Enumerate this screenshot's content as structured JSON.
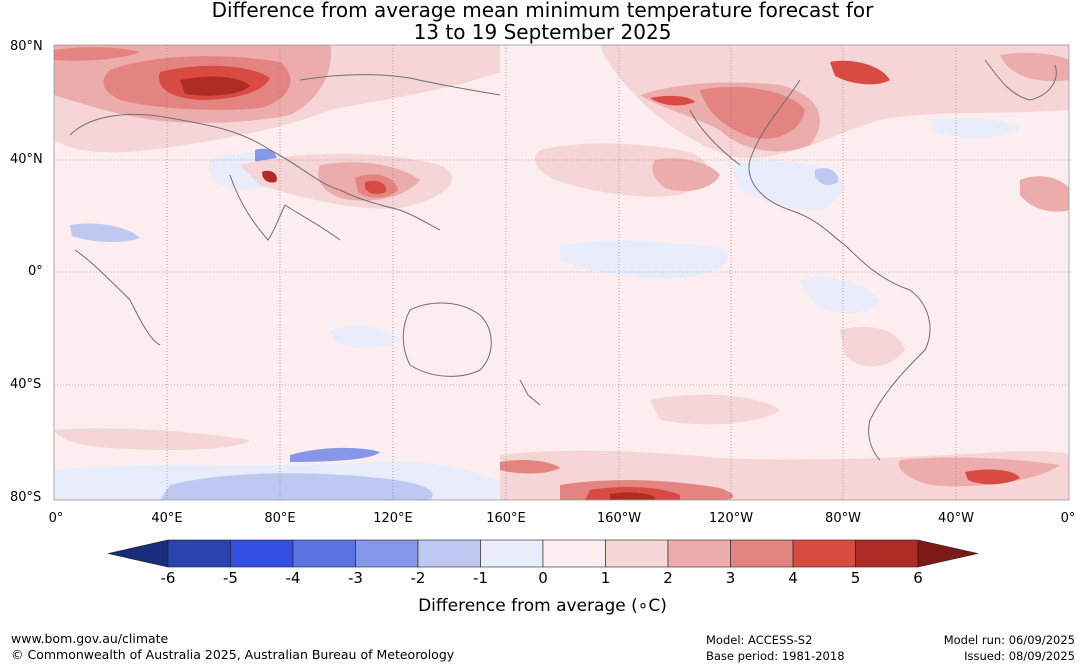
{
  "title_line1": "Difference from average mean minimum temperature forecast for",
  "title_line2": "13 to 19 September 2025",
  "lat_labels": [
    "80°N",
    "40°N",
    "0°",
    "40°S",
    "80°S"
  ],
  "lon_labels": [
    "0°",
    "40°E",
    "80°E",
    "120°E",
    "160°E",
    "160°W",
    "120°W",
    "80°W",
    "40°W",
    "0°"
  ],
  "colorbar": {
    "title": "Difference from average (∘C)",
    "ticks": [
      "-6",
      "-5",
      "-4",
      "-3",
      "-2",
      "-1",
      "0",
      "1",
      "2",
      "3",
      "4",
      "5",
      "6"
    ],
    "colors": [
      "#1a2b7a",
      "#2a43b0",
      "#3350e3",
      "#5a73e3",
      "#8597e8",
      "#bfc8f1",
      "#e8ecfb",
      "#fceeee",
      "#f5d5d5",
      "#ebacab",
      "#e48480",
      "#d94a42",
      "#ae2b26",
      "#7a1b18"
    ]
  },
  "footer": {
    "url": "www.bom.gov.au/climate",
    "copyright": "© Commonwealth of Australia 2025, Australian Bureau of Meteorology",
    "model": "Model: ACCESS-S2",
    "base_period": "Base period: 1981-2018",
    "model_run": "Model run: 06/09/2025",
    "issued": "Issued: 08/09/2025"
  }
}
